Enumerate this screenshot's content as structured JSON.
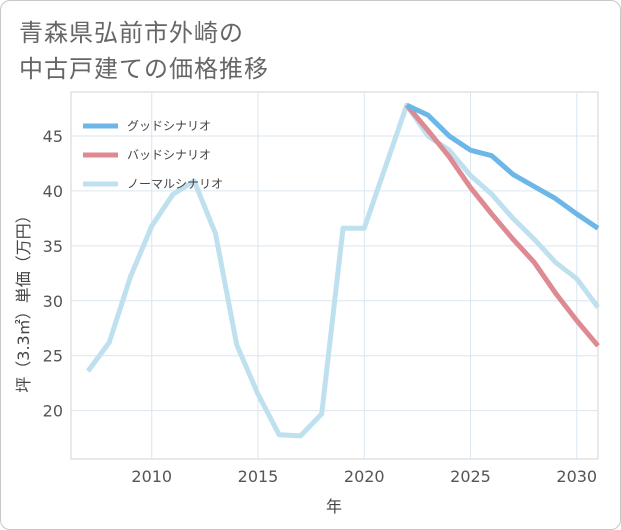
{
  "title_lines": [
    "青森県弘前市外崎の",
    "中古戸建ての価格推移"
  ],
  "chart_data": {
    "type": "line",
    "title": "青森県弘前市外崎の中古戸建ての価格推移",
    "xlabel": "年",
    "ylabel": "坪（3.3㎡）単価（万円）",
    "xlim": [
      2006.2,
      2031
    ],
    "ylim": [
      15.6,
      49
    ],
    "xticks": [
      2010,
      2015,
      2020,
      2025,
      2030
    ],
    "yticks": [
      20,
      25,
      30,
      35,
      40,
      45
    ],
    "grid": true,
    "legend_position": "top-left",
    "series": [
      {
        "name": "グッドシナリオ",
        "color": "#6cb6e8",
        "x": [
          2022,
          2023,
          2024,
          2025,
          2026,
          2027,
          2028,
          2029,
          2030,
          2031
        ],
        "y": [
          47.8,
          46.9,
          45.0,
          43.7,
          43.2,
          41.5,
          40.4,
          39.3,
          37.9,
          36.6
        ]
      },
      {
        "name": "バッドシナリオ",
        "color": "#de8a92",
        "x": [
          2022,
          2023,
          2024,
          2025,
          2026,
          2027,
          2028,
          2029,
          2030,
          2031
        ],
        "y": [
          47.8,
          45.5,
          43.1,
          40.3,
          37.9,
          35.6,
          33.5,
          30.7,
          28.2,
          25.9
        ]
      },
      {
        "name": "ノーマルシナリオ",
        "color": "#bfe0ee",
        "x": [
          2007,
          2008,
          2009,
          2010,
          2011,
          2012,
          2013,
          2014,
          2015,
          2016,
          2017,
          2018,
          2019,
          2020,
          2021,
          2022,
          2023,
          2024,
          2025,
          2026,
          2027,
          2028,
          2029,
          2030,
          2031
        ],
        "y": [
          23.6,
          26.2,
          32.2,
          36.8,
          39.7,
          40.9,
          36.1,
          26.0,
          21.5,
          17.8,
          17.7,
          19.7,
          36.6,
          36.6,
          42.2,
          47.8,
          45.0,
          43.7,
          41.4,
          39.7,
          37.5,
          35.6,
          33.5,
          32.0,
          29.4
        ]
      }
    ]
  }
}
